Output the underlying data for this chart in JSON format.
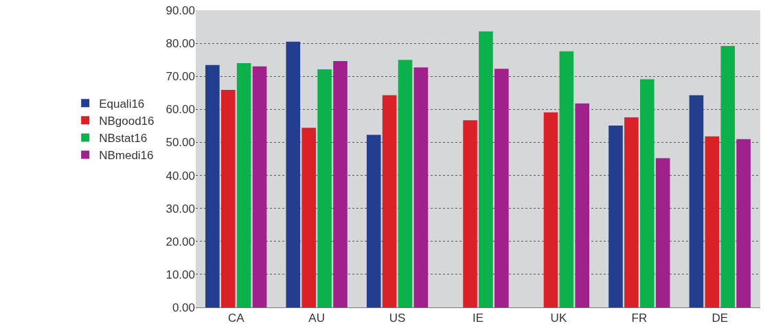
{
  "chart_data": {
    "type": "bar",
    "categories": [
      "CA",
      "AU",
      "US",
      "IE",
      "UK",
      "FR",
      "DE"
    ],
    "series": [
      {
        "name": "Equali16",
        "color": "#233e8f",
        "values": [
          73.4,
          80.5,
          52.3,
          null,
          null,
          55.1,
          64.3
        ]
      },
      {
        "name": "NBgood16",
        "color": "#db2128",
        "values": [
          65.9,
          54.4,
          64.3,
          56.7,
          59.1,
          57.6,
          51.8
        ]
      },
      {
        "name": "NBstat16",
        "color": "#0db14b",
        "values": [
          74.0,
          72.1,
          75.0,
          83.6,
          77.6,
          69.1,
          79.2
        ]
      },
      {
        "name": "NBmedi16",
        "color": "#a0218b",
        "values": [
          73.0,
          74.6,
          72.7,
          72.3,
          61.8,
          45.2,
          51.0
        ]
      }
    ],
    "ylim": [
      0,
      90
    ],
    "yticks": [
      {
        "value": 0,
        "label": "0.00"
      },
      {
        "value": 10,
        "label": "10.00"
      },
      {
        "value": 20,
        "label": "20.00"
      },
      {
        "value": 30,
        "label": "30.00"
      },
      {
        "value": 40,
        "label": "40.00"
      },
      {
        "value": 50,
        "label": "50.00"
      },
      {
        "value": 60,
        "label": "60.00"
      },
      {
        "value": 70,
        "label": "70.00"
      },
      {
        "value": 80,
        "label": "80.00"
      },
      {
        "value": 90,
        "label": "90.00"
      }
    ],
    "grid": "y",
    "legend": "left"
  }
}
